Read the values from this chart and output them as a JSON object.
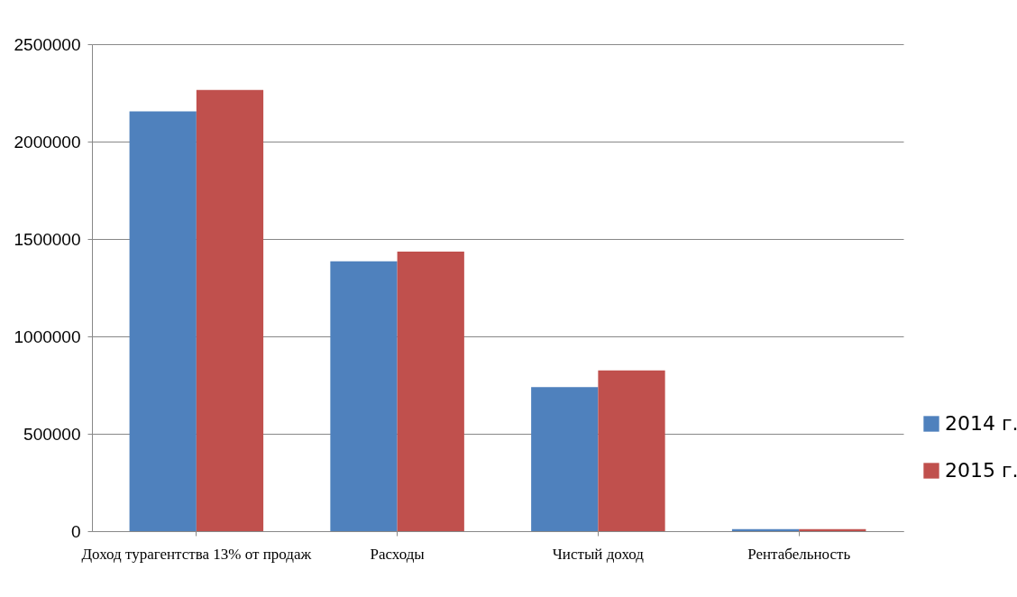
{
  "chart_data": {
    "type": "bar",
    "categories": [
      "Доход турагентства 13% от продаж",
      "Расходы",
      "Чистый доход",
      "Рентабельность"
    ],
    "series": [
      {
        "name": "2014 г.",
        "color": "#4f81bd",
        "values": [
          2155000,
          1385000,
          740000,
          10000
        ]
      },
      {
        "name": "2015 г.",
        "color": "#c0504d",
        "values": [
          2265000,
          1435000,
          825000,
          10000
        ]
      }
    ],
    "ylim": [
      0,
      2500000
    ],
    "yticks": [
      0,
      500000,
      1000000,
      1500000,
      2000000,
      2500000
    ],
    "grid": "y",
    "legend": "right"
  }
}
